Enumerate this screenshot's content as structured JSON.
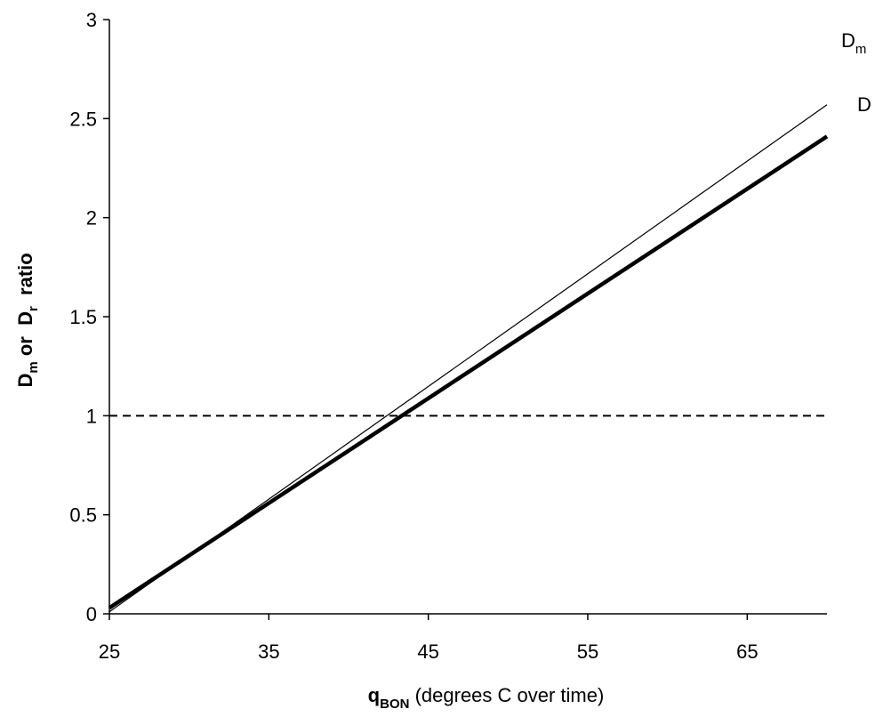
{
  "chart_data": {
    "type": "line",
    "xlabel": {
      "symbol": "q",
      "subscript": "BON",
      "rest": " (degrees C over time)"
    },
    "ylabel": {
      "a": "D",
      "a_sub": "m",
      "mid": " or  ",
      "b": "D",
      "b_sub": "r",
      "end": "  ratio"
    },
    "xlim": [
      25,
      70
    ],
    "ylim": [
      0,
      3
    ],
    "xticks": [
      25,
      35,
      45,
      55,
      65
    ],
    "xtick_labels": [
      "25",
      "35",
      "45",
      "55",
      "65"
    ],
    "yticks": [
      0,
      0.5,
      1,
      1.5,
      2,
      2.5,
      3
    ],
    "ytick_labels": [
      "0",
      "0.5",
      "1",
      "1.5",
      "2",
      "2.5",
      "3"
    ],
    "grid": false,
    "legend": "none",
    "series": [
      {
        "label": "D",
        "label_sub": "m",
        "style": "thin-solid",
        "color": "#000000",
        "x": [
          25,
          70
        ],
        "y": [
          0.01,
          2.57
        ]
      },
      {
        "label": "D",
        "label_sub": "",
        "style": "thick-solid",
        "color": "#000000",
        "x": [
          25,
          70
        ],
        "y": [
          0.03,
          2.41
        ]
      },
      {
        "label": "",
        "label_sub": "",
        "style": "dashed",
        "color": "#000000",
        "x": [
          25,
          70
        ],
        "y": [
          1,
          1
        ]
      }
    ]
  }
}
